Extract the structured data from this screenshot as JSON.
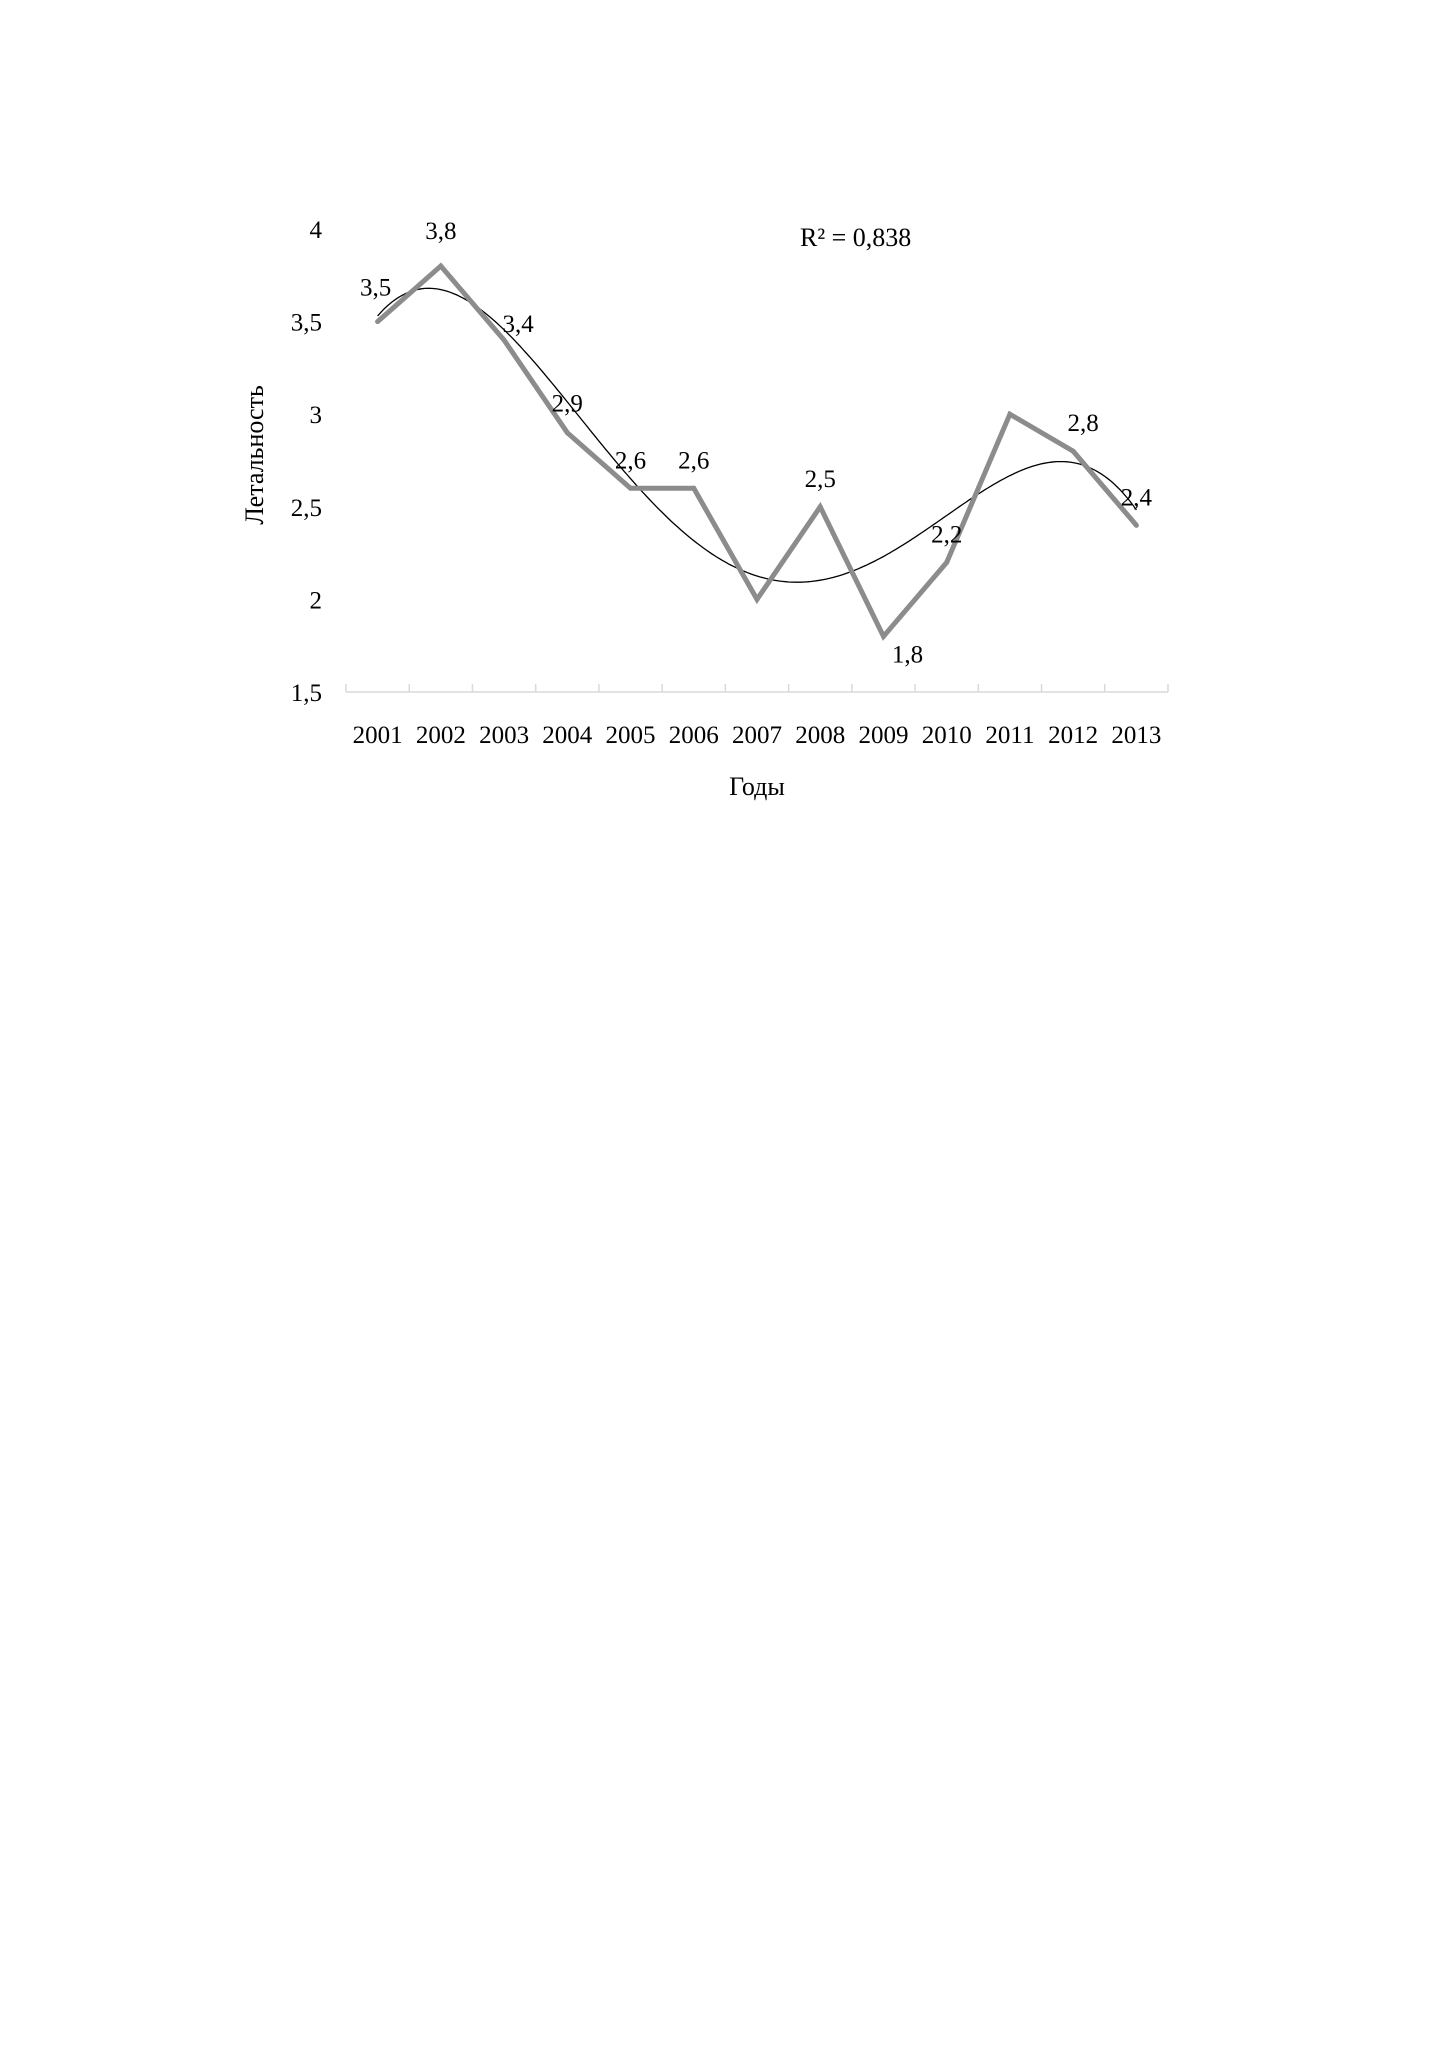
{
  "chart_data": {
    "type": "line",
    "x": [
      "2001",
      "2002",
      "2003",
      "2004",
      "2005",
      "2006",
      "2007",
      "2008",
      "2009",
      "2010",
      "2011",
      "2012",
      "2013"
    ],
    "series": [
      {
        "values": [
          3.5,
          3.8,
          3.4,
          2.9,
          2.6,
          2.6,
          2.0,
          2.5,
          1.8,
          2.2,
          3.0,
          2.8,
          2.4
        ],
        "color": "#8c8c8c"
      }
    ],
    "data_labels": [
      "3,5",
      "3,8",
      "3,4",
      "2,9",
      "2,6",
      "2,6",
      "",
      "2,5",
      "1,8",
      "2,2",
      "",
      "2,8",
      "2,4"
    ],
    "trendline": {
      "type": "polynomial",
      "color": "#000000"
    },
    "annotation": "R² = 0,838",
    "xlabel": "Годы",
    "ylabel": "Летальность",
    "ylim": [
      1.5,
      4
    ],
    "yticks": [
      1.5,
      2,
      2.5,
      3,
      3.5,
      4
    ],
    "ytick_labels": [
      "1,5",
      "2",
      "2,5",
      "3",
      "3,5",
      "4"
    ],
    "grid": false,
    "legend": "none"
  }
}
